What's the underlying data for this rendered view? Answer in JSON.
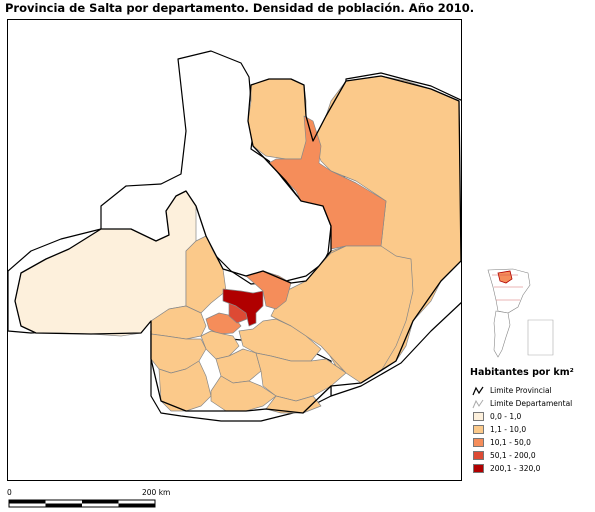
{
  "title": "Provincia de Salta por departamento. Densidad de población. Año 2010.",
  "legend": {
    "title": "Habitantes por km²",
    "lines": [
      {
        "label": "Limite Provincial",
        "color": "#000000"
      },
      {
        "label": "Limite Departamental",
        "color": "#aaaaaa"
      }
    ],
    "classes": [
      {
        "label": "0,0 - 1,0",
        "color": "#fdf0dc"
      },
      {
        "label": "1,1 - 10,0",
        "color": "#fbc98a"
      },
      {
        "label": "10,1 - 50,0",
        "color": "#f58d5a"
      },
      {
        "label": "50,1 - 200,0",
        "color": "#dd4a34"
      },
      {
        "label": "200,1 - 320,0",
        "color": "#b00000"
      }
    ]
  },
  "scale": {
    "start_label": "0",
    "end_label": "200 km"
  }
}
